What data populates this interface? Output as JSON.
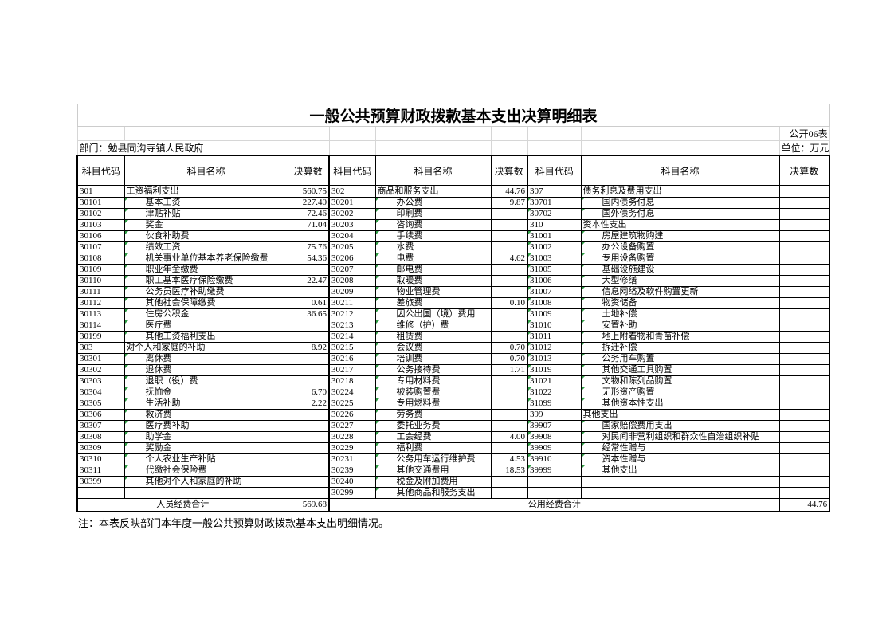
{
  "meta": {
    "title": "一般公共预算财政拨款基本支出决算明细表",
    "sheet_label": "公开06表",
    "department": "部门：勉县同沟寺镇人民政府",
    "unit": "单位：万元",
    "note": "注：本表反映部门本年度一般公共预算财政拨款基本支出明细情况。"
  },
  "table": {
    "column_headers": [
      "科目代码",
      "科目名称",
      "决算数",
      "科目代码",
      "科目名称",
      "决算数",
      "科目代码",
      "科目名称",
      "决算数"
    ],
    "groups": [
      {
        "rows": [
          {
            "code": "301",
            "name": "工资福利支出",
            "value": "560.75",
            "level": 0
          },
          {
            "code": "30101",
            "name": "基本工资",
            "value": "227.40",
            "level": 1
          },
          {
            "code": "30102",
            "name": "津贴补贴",
            "value": "72.46",
            "level": 1
          },
          {
            "code": "30103",
            "name": "奖金",
            "value": "71.04",
            "level": 1
          },
          {
            "code": "30106",
            "name": "伙食补助费",
            "value": "",
            "level": 1
          },
          {
            "code": "30107",
            "name": "绩效工资",
            "value": "75.76",
            "level": 1
          },
          {
            "code": "30108",
            "name": "机关事业单位基本养老保险缴费",
            "value": "54.36",
            "level": 1
          },
          {
            "code": "30109",
            "name": "职业年金缴费",
            "value": "",
            "level": 1
          },
          {
            "code": "30110",
            "name": "职工基本医疗保险缴费",
            "value": "22.47",
            "level": 1
          },
          {
            "code": "30111",
            "name": "公务员医疗补助缴费",
            "value": "",
            "level": 1
          },
          {
            "code": "30112",
            "name": "其他社会保障缴费",
            "value": "0.61",
            "level": 1
          },
          {
            "code": "30113",
            "name": "住房公积金",
            "value": "36.65",
            "level": 1
          },
          {
            "code": "30114",
            "name": "医疗费",
            "value": "",
            "level": 1
          },
          {
            "code": "30199",
            "name": "其他工资福利支出",
            "value": "",
            "level": 1
          },
          {
            "code": "303",
            "name": "对个人和家庭的补助",
            "value": "8.92",
            "level": 0
          },
          {
            "code": "30301",
            "name": "离休费",
            "value": "",
            "level": 1
          },
          {
            "code": "30302",
            "name": "退休费",
            "value": "",
            "level": 1
          },
          {
            "code": "30303",
            "name": "退职（役）费",
            "value": "",
            "level": 1
          },
          {
            "code": "30304",
            "name": "抚恤金",
            "value": "6.70",
            "level": 1
          },
          {
            "code": "30305",
            "name": "生活补助",
            "value": "2.22",
            "level": 1
          },
          {
            "code": "30306",
            "name": "救济费",
            "value": "",
            "level": 1
          },
          {
            "code": "30307",
            "name": "医疗费补助",
            "value": "",
            "level": 1
          },
          {
            "code": "30308",
            "name": "助学金",
            "value": "",
            "level": 1
          },
          {
            "code": "30309",
            "name": "奖励金",
            "value": "",
            "level": 1
          },
          {
            "code": "30310",
            "name": "个人农业生产补贴",
            "value": "",
            "level": 1
          },
          {
            "code": "30311",
            "name": "代缴社会保险费",
            "value": "",
            "level": 1
          },
          {
            "code": "30399",
            "name": "其他对个人和家庭的补助",
            "value": "",
            "level": 1
          },
          {
            "code": "",
            "name": "",
            "value": "",
            "level": 1
          }
        ]
      },
      {
        "rows": [
          {
            "code": "302",
            "name": "商品和服务支出",
            "value": "44.76",
            "level": 0
          },
          {
            "code": "30201",
            "name": "办公费",
            "value": "9.87",
            "level": 1
          },
          {
            "code": "30202",
            "name": "印刷费",
            "value": "",
            "level": 1
          },
          {
            "code": "30203",
            "name": "咨询费",
            "value": "",
            "level": 1
          },
          {
            "code": "30204",
            "name": "手续费",
            "value": "",
            "level": 1
          },
          {
            "code": "30205",
            "name": "水费",
            "value": "",
            "level": 1
          },
          {
            "code": "30206",
            "name": "电费",
            "value": "4.62",
            "level": 1
          },
          {
            "code": "30207",
            "name": "邮电费",
            "value": "",
            "level": 1
          },
          {
            "code": "30208",
            "name": "取暖费",
            "value": "",
            "level": 1
          },
          {
            "code": "30209",
            "name": "物业管理费",
            "value": "",
            "level": 1
          },
          {
            "code": "30211",
            "name": "差旅费",
            "value": "0.10",
            "level": 1
          },
          {
            "code": "30212",
            "name": "因公出国（境）费用",
            "value": "",
            "level": 1
          },
          {
            "code": "30213",
            "name": "维修（护）费",
            "value": "",
            "level": 1
          },
          {
            "code": "30214",
            "name": "租赁费",
            "value": "",
            "level": 1
          },
          {
            "code": "30215",
            "name": "会议费",
            "value": "0.70",
            "level": 1
          },
          {
            "code": "30216",
            "name": "培训费",
            "value": "0.70",
            "level": 1
          },
          {
            "code": "30217",
            "name": "公务接待费",
            "value": "1.71",
            "level": 1
          },
          {
            "code": "30218",
            "name": "专用材料费",
            "value": "",
            "level": 1
          },
          {
            "code": "30224",
            "name": "被装购置费",
            "value": "",
            "level": 1
          },
          {
            "code": "30225",
            "name": "专用燃料费",
            "value": "",
            "level": 1
          },
          {
            "code": "30226",
            "name": "劳务费",
            "value": "",
            "level": 1
          },
          {
            "code": "30227",
            "name": "委托业务费",
            "value": "",
            "level": 1
          },
          {
            "code": "30228",
            "name": "工会经费",
            "value": "4.00",
            "level": 1
          },
          {
            "code": "30229",
            "name": "福利费",
            "value": "",
            "level": 1
          },
          {
            "code": "30231",
            "name": "公务用车运行维护费",
            "value": "4.53",
            "level": 1
          },
          {
            "code": "30239",
            "name": "其他交通费用",
            "value": "18.53",
            "level": 1
          },
          {
            "code": "30240",
            "name": "税金及附加费用",
            "value": "",
            "level": 1
          },
          {
            "code": "30299",
            "name": "其他商品和服务支出",
            "value": "",
            "level": 1
          }
        ]
      },
      {
        "rows": [
          {
            "code": "307",
            "name": "债务利息及费用支出",
            "value": "",
            "level": 0
          },
          {
            "code": "30701",
            "name": "国内债务付息",
            "value": "",
            "level": 1
          },
          {
            "code": "30702",
            "name": "国外债务付息",
            "value": "",
            "level": 1
          },
          {
            "code": "310",
            "name": "资本性支出",
            "value": "",
            "level": 0
          },
          {
            "code": "31001",
            "name": "房屋建筑物购建",
            "value": "",
            "level": 1
          },
          {
            "code": "31002",
            "name": "办公设备购置",
            "value": "",
            "level": 1
          },
          {
            "code": "31003",
            "name": "专用设备购置",
            "value": "",
            "level": 1
          },
          {
            "code": "31005",
            "name": "基础设施建设",
            "value": "",
            "level": 1
          },
          {
            "code": "31006",
            "name": "大型修缮",
            "value": "",
            "level": 1
          },
          {
            "code": "31007",
            "name": "信息网络及软件购置更新",
            "value": "",
            "level": 1
          },
          {
            "code": "31008",
            "name": "物资储备",
            "value": "",
            "level": 1
          },
          {
            "code": "31009",
            "name": "土地补偿",
            "value": "",
            "level": 1
          },
          {
            "code": "31010",
            "name": "安置补助",
            "value": "",
            "level": 1
          },
          {
            "code": "31011",
            "name": "地上附着物和青苗补偿",
            "value": "",
            "level": 1
          },
          {
            "code": "31012",
            "name": "拆迁补偿",
            "value": "",
            "level": 1
          },
          {
            "code": "31013",
            "name": "公务用车购置",
            "value": "",
            "level": 1
          },
          {
            "code": "31019",
            "name": "其他交通工具购置",
            "value": "",
            "level": 1
          },
          {
            "code": "31021",
            "name": "文物和陈列品购置",
            "value": "",
            "level": 1
          },
          {
            "code": "31022",
            "name": "无形资产购置",
            "value": "",
            "level": 1
          },
          {
            "code": "31099",
            "name": "其他资本性支出",
            "value": "",
            "level": 1
          },
          {
            "code": "399",
            "name": "其他支出",
            "value": "",
            "level": 0
          },
          {
            "code": "39907",
            "name": "国家赔偿费用支出",
            "value": "",
            "level": 1
          },
          {
            "code": "39908",
            "name": "对民间非营利组织和群众性自治组织补贴",
            "value": "",
            "level": 1
          },
          {
            "code": "39909",
            "name": "经常性赠与",
            "value": "",
            "level": 1
          },
          {
            "code": "39910",
            "name": "资本性赠与",
            "value": "",
            "level": 1
          },
          {
            "code": "39999",
            "name": "其他支出",
            "value": "",
            "level": 1
          },
          {
            "code": "",
            "name": "",
            "value": "",
            "level": 1
          },
          {
            "code": "",
            "name": "",
            "value": "",
            "level": 1
          }
        ]
      }
    ],
    "totals": {
      "personnel_label": "人员经费合计",
      "personnel_value": "569.68",
      "public_label": "公用经费合计",
      "public_value": "44.76"
    }
  },
  "colors": {
    "marker_green": "#2f9e44"
  }
}
